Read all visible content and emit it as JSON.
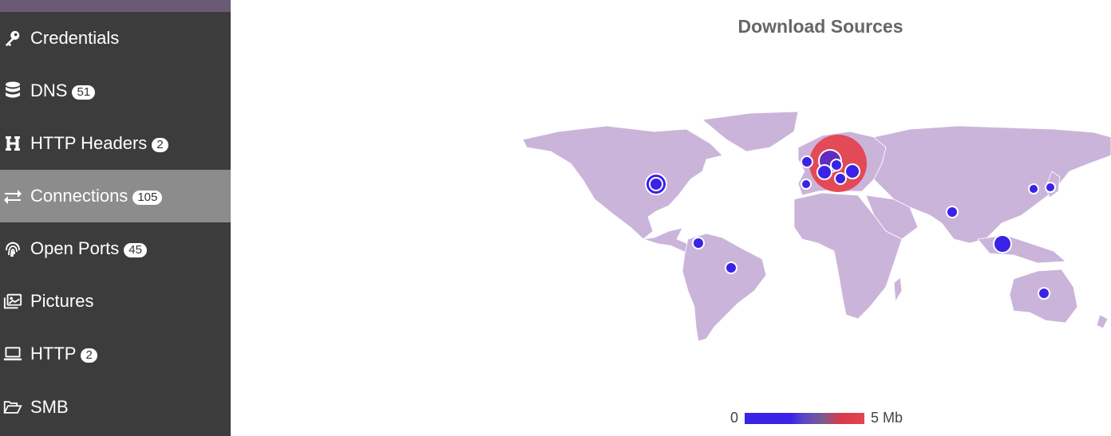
{
  "sidebar": {
    "items": [
      {
        "label": "Credentials",
        "badge": null,
        "icon": "key-icon",
        "active": false
      },
      {
        "label": "DNS",
        "badge": "51",
        "icon": "database-icon",
        "active": false
      },
      {
        "label": "HTTP Headers",
        "badge": "2",
        "icon": "header-h-icon",
        "active": false
      },
      {
        "label": "Connections",
        "badge": "105",
        "icon": "exchange-arrows-icon",
        "active": true
      },
      {
        "label": "Open Ports",
        "badge": "45",
        "icon": "fingerprint-icon",
        "active": false
      },
      {
        "label": "Pictures",
        "badge": null,
        "icon": "images-icon",
        "active": false
      },
      {
        "label": "HTTP",
        "badge": "2",
        "icon": "laptop-icon",
        "active": false
      },
      {
        "label": "SMB",
        "badge": null,
        "icon": "folder-open-icon",
        "active": false
      }
    ]
  },
  "map": {
    "title": "Download Sources",
    "legend": {
      "min_label": "0",
      "max_label": "5 Mb"
    },
    "colors": {
      "land": "#cbb4da",
      "low": "#3a22e6",
      "high": "#e4434f"
    }
  }
}
